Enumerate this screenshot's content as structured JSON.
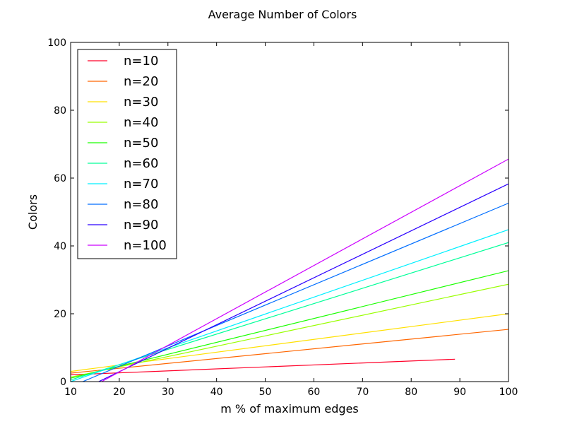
{
  "chart_data": {
    "type": "line",
    "title": "Average Number of Colors",
    "xlabel": "m % of maximum edges",
    "ylabel": "Colors",
    "xlim": [
      10,
      100
    ],
    "ylim": [
      0,
      100
    ],
    "xticks": [
      10,
      20,
      30,
      40,
      50,
      60,
      70,
      80,
      90,
      100
    ],
    "yticks": [
      0,
      20,
      40,
      60,
      80,
      100
    ],
    "grid": false,
    "legend_position": "top-left",
    "series": [
      {
        "name": "n=10",
        "color": "#ff0029",
        "x": [
          10,
          89
        ],
        "y": [
          2.0,
          6.6
        ]
      },
      {
        "name": "n=20",
        "color": "#ff6600",
        "x": [
          10,
          100
        ],
        "y": [
          2.5,
          15.4
        ]
      },
      {
        "name": "n=30",
        "color": "#ffe000",
        "x": [
          10,
          100
        ],
        "y": [
          3.0,
          20.0
        ]
      },
      {
        "name": "n=40",
        "color": "#99ff00",
        "x": [
          10,
          100
        ],
        "y": [
          1.3,
          28.7
        ]
      },
      {
        "name": "n=50",
        "color": "#1aff00",
        "x": [
          10,
          100
        ],
        "y": [
          1.0,
          32.7
        ]
      },
      {
        "name": "n=60",
        "color": "#00ff99",
        "x": [
          10,
          100
        ],
        "y": [
          0.5,
          41.0
        ]
      },
      {
        "name": "n=70",
        "color": "#00f0ff",
        "x": [
          10,
          100
        ],
        "y": [
          0.0,
          44.8
        ]
      },
      {
        "name": "n=80",
        "color": "#006eff",
        "x": [
          10,
          100
        ],
        "y": [
          -1.5,
          52.6
        ]
      },
      {
        "name": "n=90",
        "color": "#2b00ff",
        "x": [
          10,
          100
        ],
        "y": [
          -4.0,
          58.3
        ]
      },
      {
        "name": "n=100",
        "color": "#cc00ff",
        "x": [
          10,
          100
        ],
        "y": [
          -5.0,
          65.6
        ]
      }
    ]
  }
}
